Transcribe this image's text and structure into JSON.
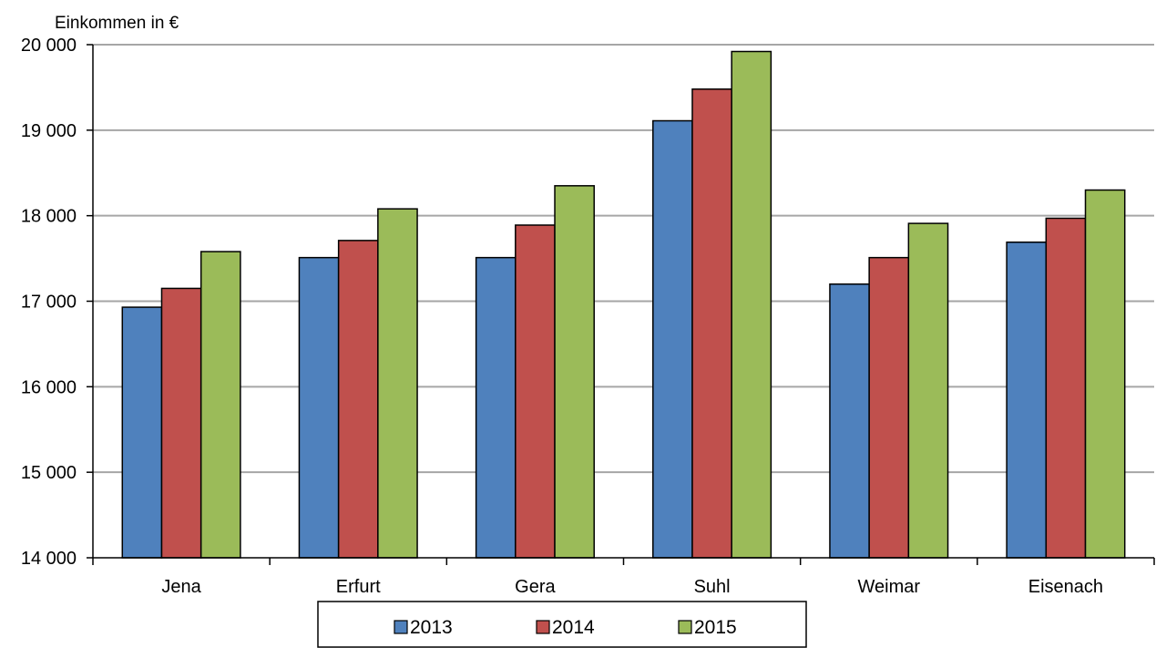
{
  "chart_data": {
    "type": "bar",
    "title": "",
    "ylabel": "Einkommen in €",
    "xlabel": "",
    "categories": [
      "Jena",
      "Erfurt",
      "Gera",
      "Suhl",
      "Weimar",
      "Eisenach"
    ],
    "series": [
      {
        "name": "2013",
        "color": "#4F81BD",
        "values": [
          16930,
          17510,
          17510,
          19110,
          17200,
          17690
        ]
      },
      {
        "name": "2014",
        "color": "#C0504D",
        "values": [
          17150,
          17710,
          17890,
          19480,
          17510,
          17970
        ]
      },
      {
        "name": "2015",
        "color": "#9BBB59",
        "values": [
          17580,
          18080,
          18350,
          19920,
          17910,
          18300
        ]
      }
    ],
    "ylim": [
      14000,
      20000
    ],
    "yticks": [
      14000,
      15000,
      16000,
      17000,
      18000,
      19000,
      20000
    ],
    "ytick_labels": [
      "14 000",
      "15 000",
      "16 000",
      "17 000",
      "18 000",
      "19 000",
      "20 000"
    ],
    "grid": true,
    "legend_position": "bottom"
  }
}
